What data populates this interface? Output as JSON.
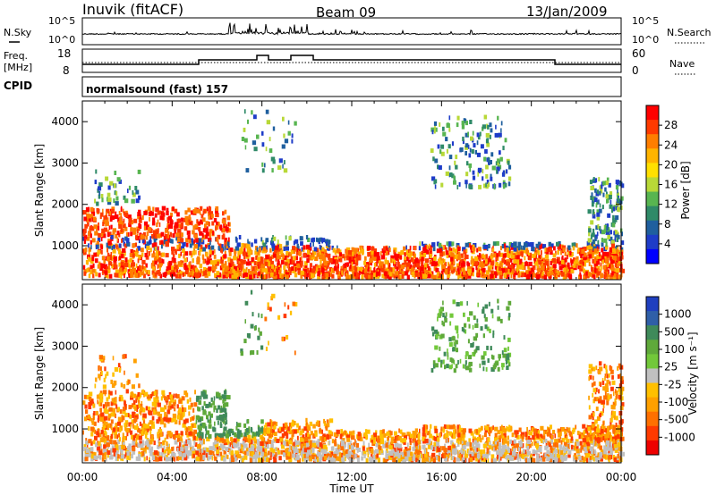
{
  "header": {
    "station": "Inuvik (fitACF)",
    "beam": "Beam 09",
    "date": "13/Jan/2009"
  },
  "mode_label": "normalsound (fast) 157",
  "left_labels": {
    "nsky": "N.Sky",
    "freq": "Freq.",
    "freq_unit": "[MHz]",
    "cpid": "CPID"
  },
  "right_labels": {
    "nsearch": "N.Search",
    "nave": "Nave"
  },
  "panel_ticks": {
    "nsky_left": [
      "10^5",
      "10^0"
    ],
    "nsky_right": [
      "10^5",
      "10^0"
    ],
    "freq_left": [
      "18",
      "8"
    ],
    "nave_right": [
      "60",
      "0"
    ]
  },
  "chart_data": [
    {
      "type": "heatmap",
      "name": "power",
      "xlabel": "",
      "ylabel": "Slant Range [km]",
      "x_ticks": [
        "00:00",
        "04:00",
        "08:00",
        "12:00",
        "16:00",
        "20:00",
        "00:00"
      ],
      "x_range_hours": [
        0,
        24
      ],
      "y_ticks": [
        1000,
        2000,
        3000,
        4000
      ],
      "ylim": [
        180,
        4500
      ],
      "colorbar": {
        "label": "Power [dB]",
        "ticks": [
          "28",
          "24",
          "20",
          "16",
          "12",
          "8",
          "4"
        ],
        "colors": [
          "#ff0000",
          "#ff3a00",
          "#ff7e00",
          "#ffb400",
          "#ffe000",
          "#b8d837",
          "#58b550",
          "#2f8a68",
          "#1f5f9e",
          "#1e3cc8",
          "#0000ff"
        ]
      }
    },
    {
      "type": "heatmap",
      "name": "velocity",
      "xlabel": "Time UT",
      "ylabel": "Slant Range [km]",
      "x_ticks": [
        "00:00",
        "04:00",
        "08:00",
        "12:00",
        "16:00",
        "20:00",
        "00:00"
      ],
      "x_range_hours": [
        0,
        24
      ],
      "y_ticks": [
        1000,
        2000,
        3000,
        4000
      ],
      "ylim": [
        180,
        4500
      ],
      "colorbar": {
        "label": "Velocity [m s⁻¹]",
        "ticks": [
          "1000",
          "500",
          "100",
          "25",
          "-25",
          "-100",
          "-500",
          "-1000"
        ],
        "colors": [
          "#1f3fbf",
          "#2f5fa8",
          "#3f8a5a",
          "#5fa93a",
          "#72c83a",
          "#c0c0c0",
          "#ffc000",
          "#ffa000",
          "#ff7000",
          "#ff3a00",
          "#ee0000"
        ]
      }
    }
  ]
}
